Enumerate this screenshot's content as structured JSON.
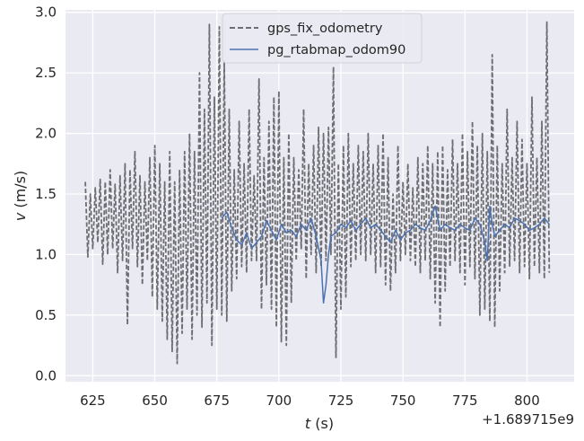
{
  "chart_data": {
    "type": "line",
    "xlabel_var": "t",
    "xlabel_unit": " (s)",
    "ylabel_var": "v",
    "ylabel_unit": " (m/s)",
    "x_offset_text": "+1.689715e9",
    "xlim": [
      614,
      819
    ],
    "ylim": [
      -0.05,
      3.02
    ],
    "grid": true,
    "legend_position": "top-center",
    "x_ticks": [
      625,
      650,
      675,
      700,
      725,
      750,
      775,
      800
    ],
    "y_ticks": [
      0.0,
      0.5,
      1.0,
      1.5,
      2.0,
      2.5,
      3.0
    ],
    "x_tick_labels": [
      "625",
      "650",
      "675",
      "700",
      "725",
      "750",
      "775",
      "800"
    ],
    "y_tick_labels": [
      "0.0",
      "0.5",
      "1.0",
      "1.5",
      "2.0",
      "2.5",
      "3.0"
    ],
    "series": [
      {
        "name": "gps_fix_odometry",
        "color": "#6e6e72",
        "style": "dashed",
        "x": [
          622,
          623,
          624,
          625,
          626,
          627,
          628,
          629,
          630,
          631,
          632,
          633,
          634,
          635,
          636,
          637,
          638,
          639,
          640,
          641,
          642,
          643,
          644,
          645,
          646,
          647,
          648,
          649,
          650,
          651,
          652,
          653,
          654,
          655,
          656,
          657,
          658,
          659,
          660,
          661,
          662,
          663,
          664,
          665,
          666,
          667,
          668,
          669,
          670,
          671,
          672,
          673,
          674,
          675,
          676,
          677,
          678,
          679,
          680,
          681,
          682,
          683,
          684,
          685,
          686,
          687,
          688,
          689,
          690,
          691,
          692,
          693,
          694,
          695,
          696,
          697,
          698,
          699,
          700,
          701,
          702,
          703,
          704,
          705,
          706,
          707,
          708,
          709,
          710,
          711,
          712,
          713,
          714,
          715,
          716,
          717,
          718,
          719,
          720,
          721,
          722,
          723,
          724,
          725,
          726,
          727,
          728,
          729,
          730,
          731,
          732,
          733,
          734,
          735,
          736,
          737,
          738,
          739,
          740,
          741,
          742,
          743,
          744,
          745,
          746,
          747,
          748,
          749,
          750,
          751,
          752,
          753,
          754,
          755,
          756,
          757,
          758,
          759,
          760,
          761,
          762,
          763,
          764,
          765,
          766,
          767,
          768,
          769,
          770,
          771,
          772,
          773,
          774,
          775,
          776,
          777,
          778,
          779,
          780,
          781,
          782,
          783,
          784,
          785,
          786,
          787,
          788,
          789,
          790,
          791,
          792,
          793,
          794,
          795,
          796,
          797,
          798,
          799,
          800,
          801,
          802,
          803,
          804,
          805,
          806,
          807,
          808,
          809
        ],
        "y": [
          1.6,
          0.98,
          1.5,
          1.05,
          1.55,
          1.1,
          1.62,
          0.92,
          1.6,
          1.0,
          1.7,
          1.05,
          1.58,
          0.85,
          1.65,
          0.95,
          1.75,
          0.42,
          1.7,
          1.05,
          1.85,
          0.9,
          1.65,
          0.75,
          1.6,
          0.95,
          1.8,
          0.65,
          1.9,
          0.55,
          1.75,
          0.45,
          1.6,
          0.3,
          1.85,
          0.2,
          1.6,
          0.1,
          1.7,
          0.35,
          1.85,
          0.55,
          2.0,
          0.3,
          1.85,
          0.5,
          2.5,
          0.4,
          2.2,
          0.6,
          2.9,
          0.25,
          2.3,
          0.55,
          2.88,
          0.5,
          2.6,
          0.45,
          2.2,
          0.7,
          1.7,
          0.8,
          2.1,
          0.9,
          1.75,
          0.85,
          2.2,
          0.95,
          1.65,
          0.95,
          2.45,
          0.55,
          1.8,
          0.75,
          2.1,
          0.55,
          2.3,
          0.4,
          2.35,
          0.28,
          1.8,
          0.25,
          2.0,
          0.6,
          1.8,
          0.95,
          1.7,
          1.05,
          2.2,
          0.8,
          1.75,
          1.0,
          1.9,
          0.85,
          2.05,
          0.9,
          2.0,
          0.95,
          2.05,
          1.0,
          2.55,
          0.15,
          1.75,
          0.55,
          1.9,
          0.65,
          2.0,
          0.9,
          1.75,
          0.95,
          1.9,
          1.0,
          1.85,
          0.95,
          2.0,
          1.0,
          1.75,
          0.85,
          1.9,
          0.9,
          2.0,
          0.75,
          1.8,
          0.7,
          1.5,
          0.85,
          1.9,
          0.95,
          1.6,
          1.0,
          1.75,
          0.95,
          1.55,
          0.9,
          1.8,
          0.85,
          1.75,
          0.95,
          1.9,
          0.8,
          1.75,
          0.6,
          1.85,
          0.4,
          1.9,
          0.7,
          1.7,
          0.9,
          1.95,
          0.95,
          1.75,
          0.85,
          2.0,
          0.75,
          1.85,
          0.9,
          2.1,
          0.8,
          1.9,
          0.5,
          2.0,
          0.55,
          1.85,
          0.45,
          2.65,
          0.4,
          1.9,
          0.7,
          1.75,
          0.85,
          2.2,
          0.9,
          1.8,
          0.95,
          2.1,
          0.85,
          1.95,
          0.9,
          1.75,
          0.8,
          2.3,
          0.9,
          1.8,
          0.85,
          2.1,
          0.8,
          2.92,
          0.85
        ]
      },
      {
        "name": "pg_rtabmap_odom90",
        "color": "#4c72b0",
        "style": "solid",
        "x": [
          677,
          679,
          681,
          683,
          685,
          687,
          689,
          691,
          693,
          695,
          697,
          699,
          701,
          703,
          705,
          707,
          709,
          711,
          713,
          715,
          717,
          718,
          719,
          720,
          721,
          723,
          725,
          727,
          729,
          731,
          733,
          735,
          737,
          739,
          741,
          743,
          745,
          747,
          749,
          751,
          753,
          755,
          757,
          759,
          761,
          763,
          764,
          765,
          767,
          769,
          771,
          773,
          775,
          777,
          779,
          781,
          783,
          784,
          785,
          786,
          787,
          789,
          791,
          793,
          795,
          797,
          799,
          801,
          803,
          805,
          807,
          809
        ],
        "y": [
          1.3,
          1.35,
          1.22,
          1.12,
          1.08,
          1.18,
          1.05,
          1.1,
          1.15,
          1.28,
          1.2,
          1.12,
          1.25,
          1.18,
          1.2,
          1.15,
          1.25,
          1.2,
          1.3,
          1.15,
          0.95,
          0.6,
          0.75,
          1.0,
          1.15,
          1.18,
          1.25,
          1.22,
          1.28,
          1.2,
          1.25,
          1.3,
          1.22,
          1.25,
          1.2,
          1.15,
          1.1,
          1.2,
          1.12,
          1.18,
          1.2,
          1.25,
          1.22,
          1.2,
          1.28,
          1.4,
          1.3,
          1.2,
          1.25,
          1.22,
          1.2,
          1.25,
          1.22,
          1.2,
          1.3,
          1.25,
          1.1,
          0.95,
          1.4,
          1.25,
          1.15,
          1.2,
          1.25,
          1.22,
          1.3,
          1.28,
          1.25,
          1.2,
          1.22,
          1.25,
          1.3,
          1.25
        ]
      }
    ]
  }
}
